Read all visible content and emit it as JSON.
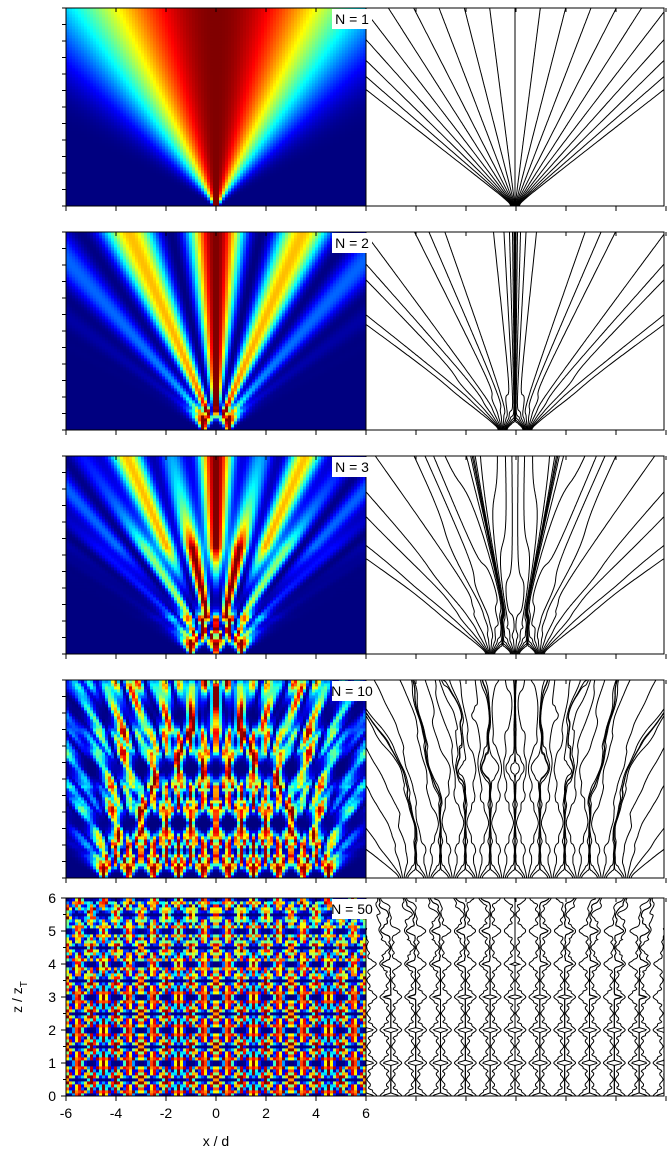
{
  "chart_data": [
    {
      "type": "heatmap",
      "label": "N = 1",
      "N": 1
    },
    {
      "type": "heatmap",
      "label": "N = 2",
      "N": 2
    },
    {
      "type": "heatmap",
      "label": "N = 3",
      "N": 3
    },
    {
      "type": "heatmap",
      "label": "N = 10",
      "N": 10
    },
    {
      "type": "heatmap",
      "label": "N = 50",
      "N": 50,
      "xlabel": "x / d",
      "ylabel": "z / z",
      "ylabel_sub": "T",
      "xlim": [
        -6,
        6
      ],
      "ylim": [
        0,
        6
      ],
      "xticks": [
        -6,
        -4,
        -2,
        0,
        2,
        4,
        6
      ],
      "yticks": [
        0,
        1,
        2,
        3,
        4,
        5,
        6
      ]
    }
  ]
}
